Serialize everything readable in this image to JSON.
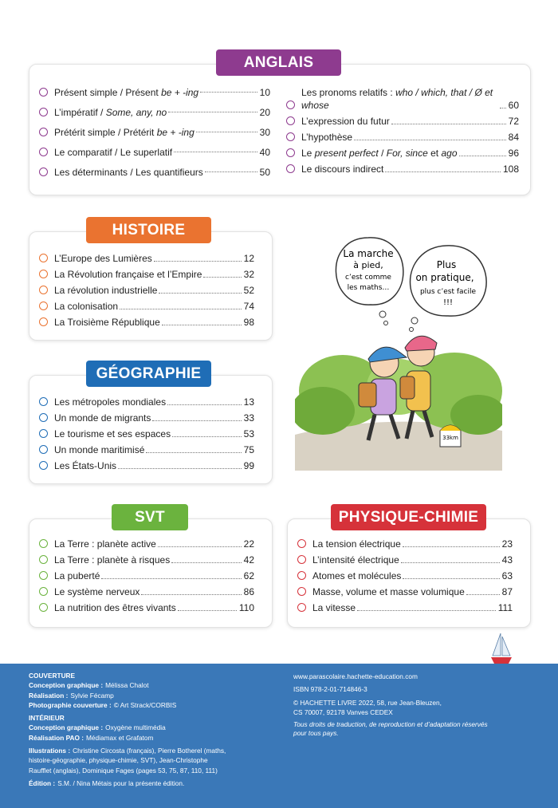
{
  "sections": [
    {
      "title": "ANGLAIS",
      "columns": [
        [
          {
            "segments": [
              "Présent simple / Présent ",
              "be + -ing"
            ],
            "page": 10
          },
          {
            "segments": [
              "L’impératif / ",
              "Some, any, no"
            ],
            "page": 20
          },
          {
            "segments": [
              "Prétérit simple / Prétérit ",
              "be + -ing"
            ],
            "page": 30
          },
          {
            "segments": [
              "Le comparatif / Le superlatif"
            ],
            "page": 40
          },
          {
            "segments": [
              "Les déterminants / Les quantifieurs"
            ],
            "page": 50
          }
        ],
        [
          {
            "segments": [
              "Les pronoms relatifs : ",
              "who / which, that / Ø et whose"
            ],
            "page": 60
          },
          {
            "segments": [
              "L’expression du futur"
            ],
            "page": 72
          },
          {
            "segments": [
              "L’hypothèse"
            ],
            "page": 84
          },
          {
            "segments": [
              "Le ",
              "present perfect",
              " / ",
              "For, since",
              " et ",
              "ago"
            ],
            "page": 96
          },
          {
            "segments": [
              "Le discours indirect"
            ],
            "page": 108
          }
        ]
      ]
    },
    {
      "title": "HISTOIRE",
      "columns": [
        [
          {
            "segments": [
              "L’Europe des Lumières"
            ],
            "page": 12
          },
          {
            "segments": [
              "La Révolution française et l’Empire"
            ],
            "page": 32
          },
          {
            "segments": [
              "La révolution industrielle"
            ],
            "page": 52
          },
          {
            "segments": [
              "La colonisation"
            ],
            "page": 74
          },
          {
            "segments": [
              "La Troisième République"
            ],
            "page": 98
          }
        ]
      ]
    },
    {
      "title": "GÉOGRAPHIE",
      "columns": [
        [
          {
            "segments": [
              "Les métropoles mondiales"
            ],
            "page": 13
          },
          {
            "segments": [
              "Un monde de migrants"
            ],
            "page": 33
          },
          {
            "segments": [
              "Le tourisme et ses espaces"
            ],
            "page": 53
          },
          {
            "segments": [
              "Un monde maritimisé"
            ],
            "page": 75
          },
          {
            "segments": [
              "Les États-Unis"
            ],
            "page": 99
          }
        ]
      ]
    },
    {
      "title": "SVT",
      "columns": [
        [
          {
            "segments": [
              "La Terre : planète active"
            ],
            "page": 22
          },
          {
            "segments": [
              "La Terre : planète à risques"
            ],
            "page": 42
          },
          {
            "segments": [
              "La puberté"
            ],
            "page": 62
          },
          {
            "segments": [
              "Le système nerveux"
            ],
            "page": 86
          },
          {
            "segments": [
              "La nutrition des êtres vivants"
            ],
            "page": 110
          }
        ]
      ]
    },
    {
      "title": "PHYSIQUE-CHIMIE",
      "columns": [
        [
          {
            "segments": [
              "La tension électrique"
            ],
            "page": 23
          },
          {
            "segments": [
              "L’intensité électrique"
            ],
            "page": 43
          },
          {
            "segments": [
              "Atomes et molécules"
            ],
            "page": 63
          },
          {
            "segments": [
              "Masse, volume et masse volumique"
            ],
            "page": 87
          },
          {
            "segments": [
              "La vitesse"
            ],
            "page": 111
          }
        ]
      ]
    }
  ],
  "illustration": {
    "bubbles": [
      [
        "La marche",
        "à pied,",
        "c’est comme",
        "les maths…"
      ],
      [
        "Plus",
        "on pratique,",
        "plus c’est facile",
        "!!!"
      ]
    ],
    "milestone": "33km"
  },
  "footer": {
    "left": [
      {
        "heading": "COUVERTURE",
        "entries": [
          {
            "label": "Conception graphique :",
            "value": "Mélissa Chalot"
          },
          {
            "label": "Réalisation :",
            "value": "Sylvie Fécamp"
          },
          {
            "label": "Photographie couverture :",
            "value": "© Art Strack/CORBIS"
          }
        ]
      },
      {
        "heading": "INTÉRIEUR",
        "entries": [
          {
            "label": "Conception graphique :",
            "value": "Oxygène multimédia"
          },
          {
            "label": "Réalisation PAO :",
            "value": "Médiamax et Grafatom"
          },
          {
            "label": "Illustrations :",
            "value": "Christine Circosta (français), Pierre Botherel (maths, histoire-géographie, physique-chimie, SVT), Jean-Christophe Raufflet (anglais), Dominique Fages (pages 53, 75, 87, 110, 111)"
          },
          {
            "label": "Édition :",
            "value": "S.M. / Nina Métais pour la présente édition."
          }
        ]
      }
    ],
    "right": {
      "website": "www.parascolaire.hachette-education.com",
      "isbn": "ISBN 978-2-01-714846-3",
      "copyright": [
        "© HACHETTE LIVRE 2022, 58, rue Jean-Bleuzen,",
        "CS 70007, 92178 Vanves CEDEX"
      ],
      "rights": [
        "Tous droits de traduction, de reproduction et d’adaptation réservés",
        "pour tous pays."
      ]
    }
  }
}
